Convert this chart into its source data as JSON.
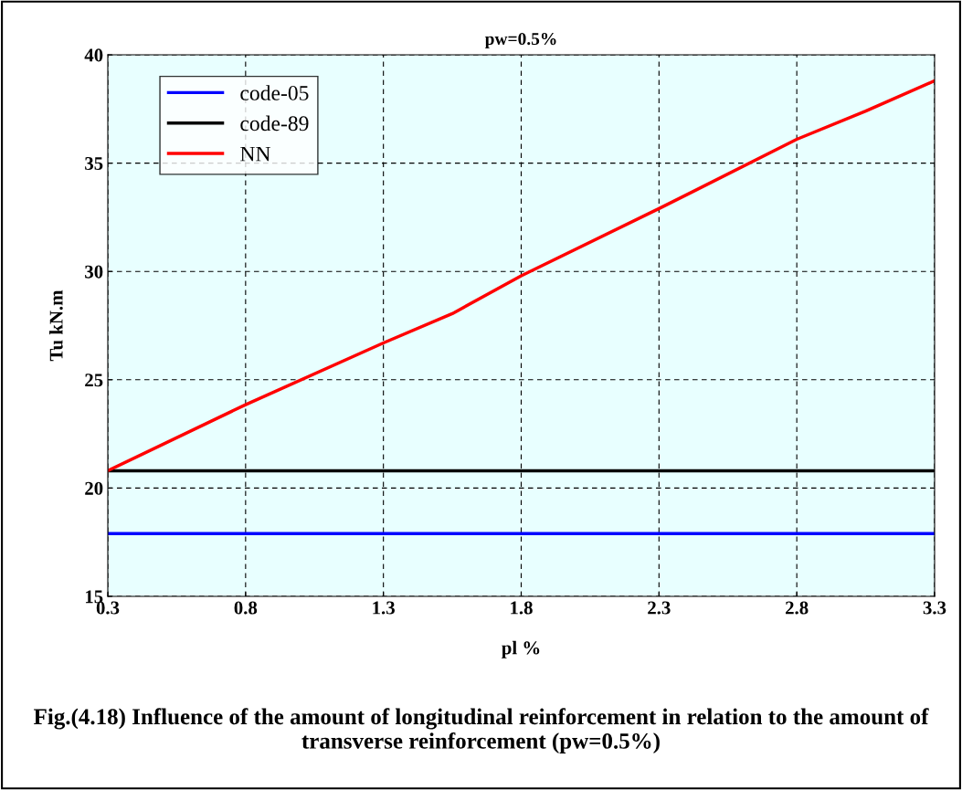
{
  "chart_data": {
    "type": "line",
    "title": "pw=0.5%",
    "xlabel": "pl %",
    "ylabel": "Tu kN.m",
    "x": [
      0.3,
      0.8,
      1.3,
      1.55,
      1.8,
      2.3,
      2.8,
      3.05,
      3.3
    ],
    "series": [
      {
        "name": "code-05",
        "color": "#0000ff",
        "values": [
          17.9,
          17.9,
          17.9,
          17.9,
          17.9,
          17.9,
          17.9,
          17.9,
          17.9
        ]
      },
      {
        "name": "code-89",
        "color": "#000000",
        "values": [
          20.8,
          20.8,
          20.8,
          20.8,
          20.8,
          20.8,
          20.8,
          20.8,
          20.8
        ]
      },
      {
        "name": "NN",
        "color": "#ff0000",
        "values": [
          20.8,
          23.85,
          26.7,
          28.05,
          29.8,
          32.9,
          36.1,
          37.4,
          38.8
        ]
      }
    ],
    "xlim": [
      0.3,
      3.3
    ],
    "xticks": [
      0.3,
      0.8,
      1.3,
      1.8,
      2.3,
      2.8,
      3.3
    ],
    "ylim": [
      15,
      40
    ],
    "yticks": [
      15,
      20,
      25,
      30,
      35,
      40
    ],
    "grid": true,
    "legend": "top left",
    "marker": "none",
    "line_style": "solid",
    "annotations": [
      "Fig.(4.18) Influence of the amount of longitudinal reinforcement in relation to the amount of transverse reinforcement (pw=0.5%)"
    ]
  }
}
